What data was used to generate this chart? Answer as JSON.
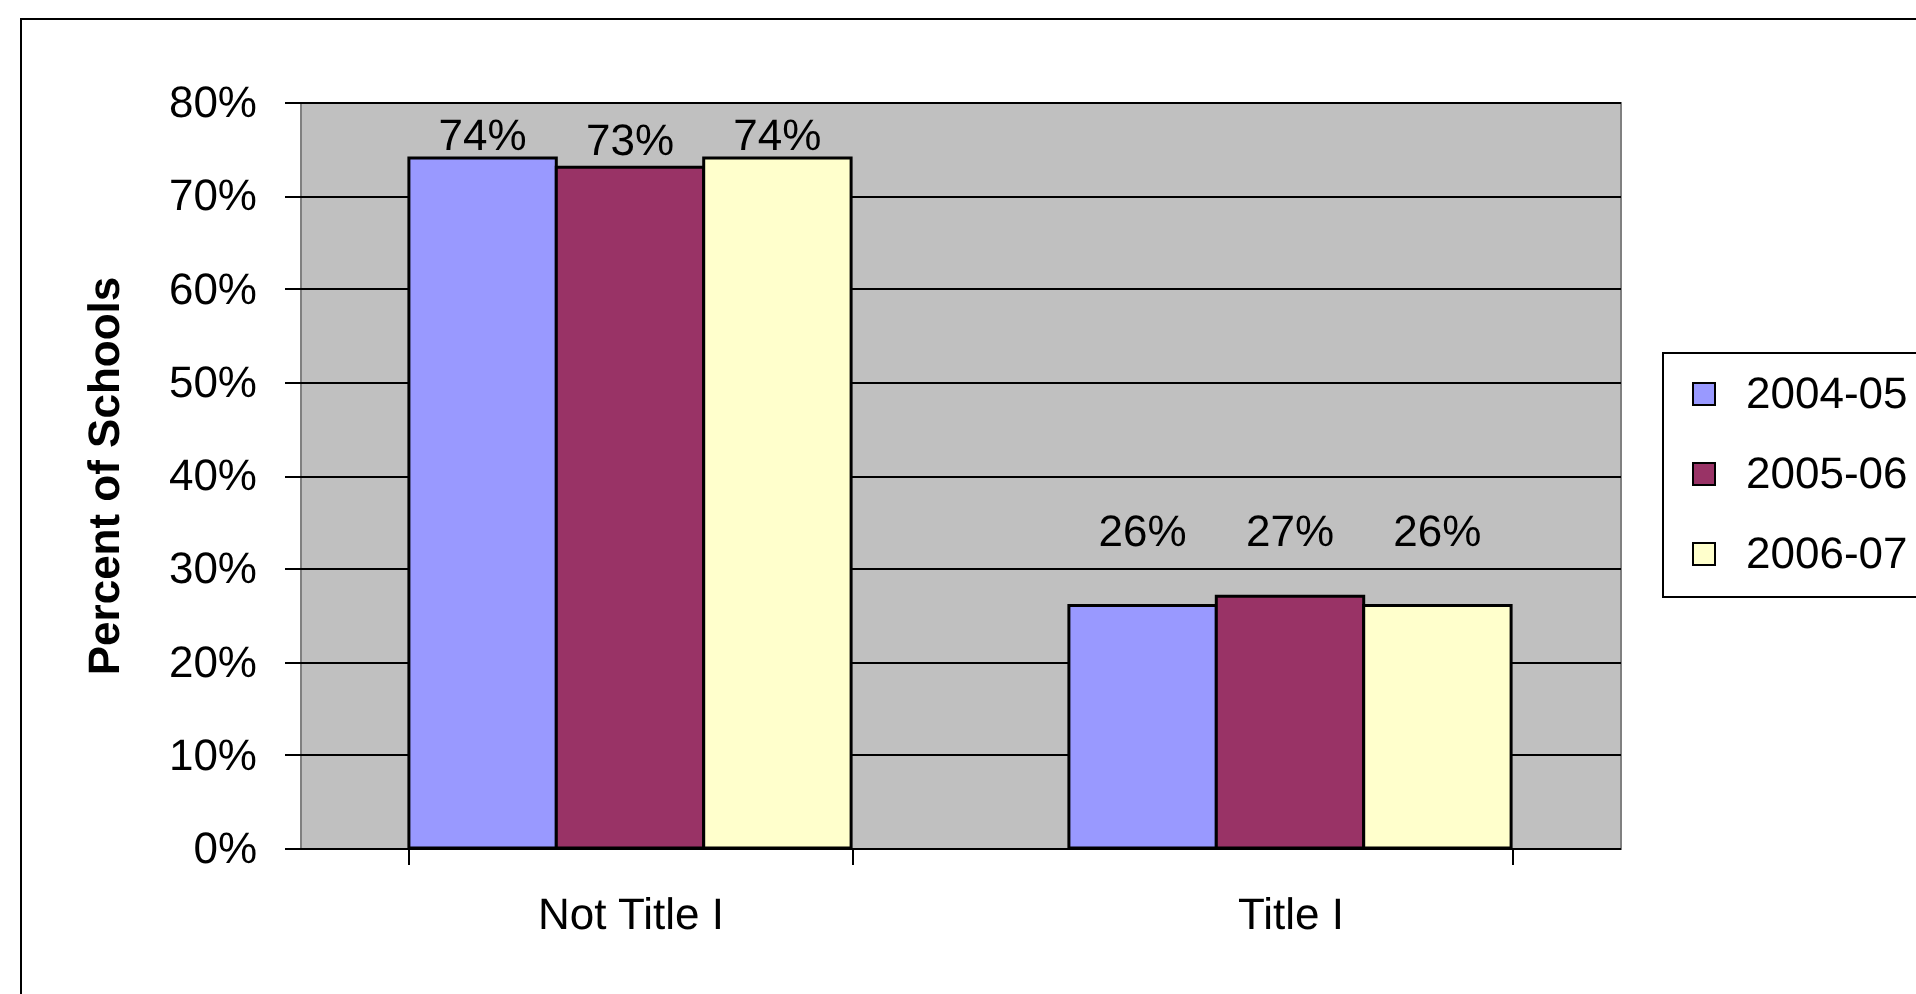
{
  "chart_data": {
    "type": "bar",
    "ylabel": "Percent of Schools",
    "categories": [
      "Not Title I",
      "Title I"
    ],
    "series": [
      {
        "name": "2004-05",
        "color": "#9999ff",
        "values": [
          74,
          26
        ],
        "value_labels": [
          "74%",
          "26%"
        ]
      },
      {
        "name": "2005-06",
        "color": "#993366",
        "values": [
          73,
          27
        ],
        "value_labels": [
          "73%",
          "27%"
        ]
      },
      {
        "name": "2006-07",
        "color": "#ffffcc",
        "values": [
          74,
          26
        ],
        "value_labels": [
          "74%",
          "26%"
        ]
      }
    ],
    "ylim": [
      0,
      80
    ],
    "yticks": [
      {
        "value": 0,
        "label": "0%"
      },
      {
        "value": 10,
        "label": "10%"
      },
      {
        "value": 20,
        "label": "20%"
      },
      {
        "value": 30,
        "label": "30%"
      },
      {
        "value": 40,
        "label": "40%"
      },
      {
        "value": 50,
        "label": "50%"
      },
      {
        "value": 60,
        "label": "60%"
      },
      {
        "value": 70,
        "label": "70%"
      },
      {
        "value": 80,
        "label": "80%"
      }
    ],
    "grid": "y",
    "legend": "right"
  }
}
